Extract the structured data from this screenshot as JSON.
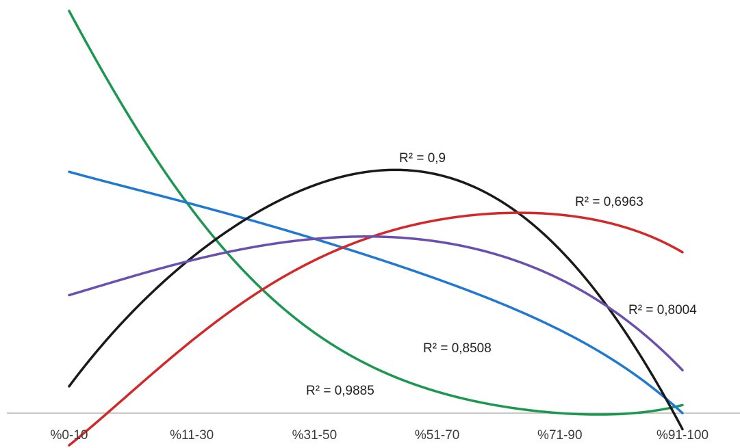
{
  "chart_data": {
    "type": "line",
    "title": "",
    "xlabel": "",
    "ylabel": "",
    "categories": [
      "%0-10",
      "%11-30",
      "%31-50",
      "%51-70",
      "%71-90",
      "%91-100"
    ],
    "ylim": [
      -1.5,
      15
    ],
    "grid": false,
    "series": [
      {
        "color": "#1a9850",
        "label": "R² = 0,9885",
        "points": [
          [
            1,
            15
          ],
          [
            2,
            7.6
          ],
          [
            3,
            3.0
          ],
          [
            4,
            0.8
          ],
          [
            5,
            0
          ],
          [
            6,
            0.3
          ]
        ]
      },
      {
        "color": "#1f78d1",
        "label": "R² = 0,8508",
        "points": [
          [
            1,
            9.0
          ],
          [
            2,
            7.8
          ],
          [
            3,
            6.5
          ],
          [
            4,
            5.0
          ],
          [
            5,
            3.1
          ],
          [
            6,
            0.0
          ]
        ]
      },
      {
        "color": "#1a1a1a",
        "label": "R² = 0,9",
        "points": [
          [
            1,
            1.0
          ],
          [
            2,
            5.8
          ],
          [
            3,
            8.5
          ],
          [
            4,
            8.9
          ],
          [
            5,
            6.1
          ],
          [
            6,
            -0.6
          ]
        ]
      },
      {
        "color": "#d62728",
        "label": "R² = 0,6963",
        "points": [
          [
            1,
            -1.2
          ],
          [
            2,
            2.7
          ],
          [
            3,
            5.7
          ],
          [
            4,
            7.2
          ],
          [
            5,
            7.4
          ],
          [
            6,
            6.0
          ]
        ]
      },
      {
        "color": "#6a4fb0",
        "label": "R² = 0,8004",
        "points": [
          [
            1,
            4.4
          ],
          [
            2,
            5.7
          ],
          [
            3,
            6.5
          ],
          [
            4,
            6.4
          ],
          [
            5,
            5.0
          ],
          [
            6,
            1.6
          ]
        ]
      }
    ]
  }
}
